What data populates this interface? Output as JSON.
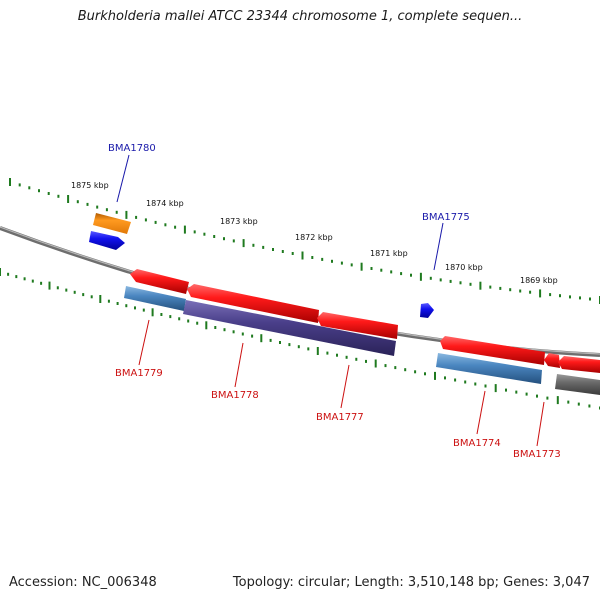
{
  "title": "Burkholderia mallei ATCC 23344 chromosome 1, complete sequen...",
  "footer": {
    "accession": "Accession: NC_006348",
    "summary": "Topology: circular; Length: 3,510,148 bp; Genes: 3,047"
  },
  "kbp_labels": [
    "1875 kbp",
    "1874 kbp",
    "1873 kbp",
    "1872 kbp",
    "1871 kbp",
    "1870 kbp",
    "1869 kbp"
  ],
  "colors": {
    "backbone": "#8c8c8c",
    "tick": "#1f7a1f",
    "gene_label_forward": "#1a1aaa",
    "gene_label_reverse": "#cc1111",
    "red": "#ee1111",
    "blue": "#1515ee",
    "orange": "#f08a10",
    "steelblue": "#4a86c0",
    "purple": "#4a3f8a",
    "gray": "#666666"
  },
  "genes": {
    "forward": [
      "BMA1780",
      "BMA1775"
    ],
    "reverse": [
      "BMA1779",
      "BMA1778",
      "BMA1777",
      "BMA1774",
      "BMA1773"
    ]
  }
}
